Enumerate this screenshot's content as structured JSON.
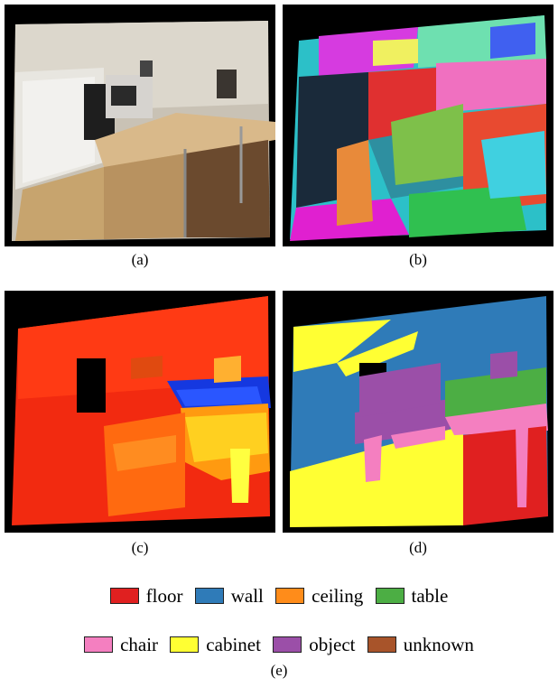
{
  "figure": {
    "panels": [
      {
        "id": "a",
        "caption": "(a)",
        "content": "rgb-kitchen-photo"
      },
      {
        "id": "b",
        "caption": "(b)",
        "content": "superpixel-segmentation"
      },
      {
        "id": "c",
        "caption": "(c)",
        "content": "depth-heat-map"
      },
      {
        "id": "d",
        "caption": "(d)",
        "content": "semantic-labels"
      }
    ],
    "legend": {
      "caption": "(e)",
      "row1": [
        {
          "label": "floor",
          "color": "#e02020"
        },
        {
          "label": "wall",
          "color": "#2f7bb8"
        },
        {
          "label": "ceiling",
          "color": "#ff8c1a"
        },
        {
          "label": "table",
          "color": "#4cae44"
        }
      ],
      "row2": [
        {
          "label": "chair",
          "color": "#f47fc0"
        },
        {
          "label": "cabinet",
          "color": "#ffff33"
        },
        {
          "label": "object",
          "color": "#9b4fa8"
        },
        {
          "label": "unknown",
          "color": "#a8542a"
        }
      ]
    }
  }
}
